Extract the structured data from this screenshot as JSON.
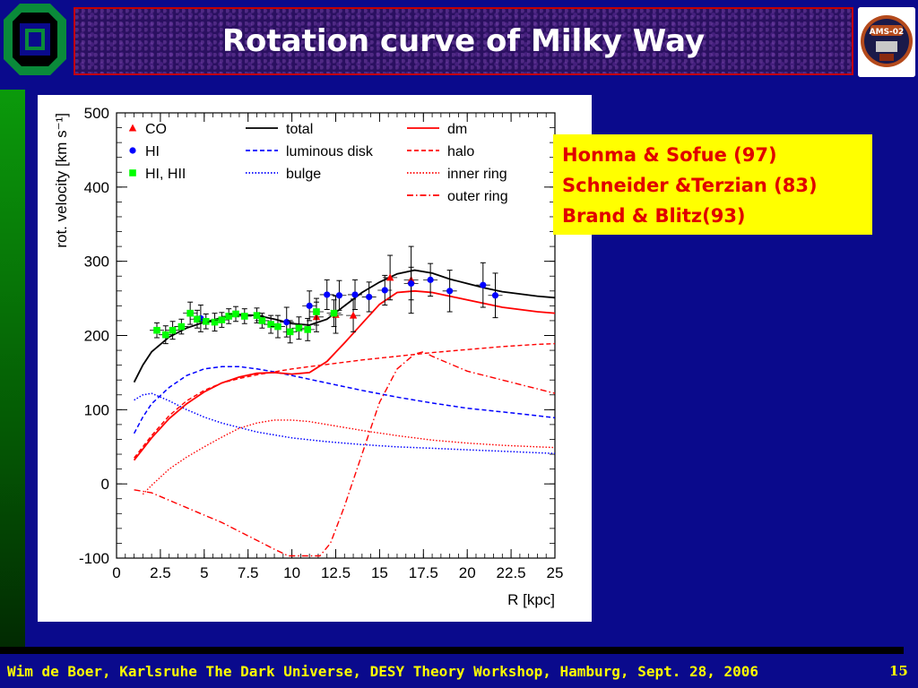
{
  "slide": {
    "title": "Rotation curve of Milky Way",
    "footer": "Wim de Boer, Karlsruhe The Dark Universe, DESY Theory Workshop, Hamburg, Sept. 28, 2006",
    "page_number": "15",
    "logo_text": "AMS-02"
  },
  "references": [
    "Honma & Sofue (97)",
    "Schneider &Terzian (83)",
    "Brand & Blitz(93)"
  ],
  "colors": {
    "background": "#0a0a8c",
    "refs_bg": "#ffff00",
    "refs_text": "#e00000",
    "footer_text": "#ffff00"
  },
  "chart_data": {
    "type": "line",
    "title": "",
    "xlabel": "R [kpc]",
    "ylabel": "rot. velocity [km s⁻¹]",
    "xlim": [
      0,
      25
    ],
    "ylim": [
      -100,
      500
    ],
    "xticks": [
      "0",
      "2.5",
      "5",
      "7.5",
      "10",
      "12.5",
      "15",
      "17.5",
      "20",
      "22.5",
      "25"
    ],
    "yticks": [
      "-100",
      "0",
      "100",
      "200",
      "300",
      "400",
      "500"
    ],
    "grid": false,
    "legend": [
      {
        "label": "CO",
        "kind": "marker",
        "color": "#ff0000",
        "marker": "triangle"
      },
      {
        "label": "HI",
        "kind": "marker",
        "color": "#0000ff",
        "marker": "circle"
      },
      {
        "label": "HI, HII",
        "kind": "marker",
        "color": "#00ff00",
        "marker": "square"
      },
      {
        "label": "total",
        "kind": "line",
        "color": "#000000",
        "dash": "solid"
      },
      {
        "label": "luminous disk",
        "kind": "line",
        "color": "#0000ff",
        "dash": "dashed"
      },
      {
        "label": "bulge",
        "kind": "line",
        "color": "#0000ff",
        "dash": "dotted"
      },
      {
        "label": "dm",
        "kind": "line",
        "color": "#ff0000",
        "dash": "solid"
      },
      {
        "label": "halo",
        "kind": "line",
        "color": "#ff0000",
        "dash": "dashed"
      },
      {
        "label": "inner ring",
        "kind": "line",
        "color": "#ff0000",
        "dash": "dotted"
      },
      {
        "label": "outer ring",
        "kind": "line",
        "color": "#ff0000",
        "dash": "dashdot"
      }
    ],
    "curves": [
      {
        "name": "total",
        "color": "#000000",
        "dash": "solid",
        "width": 1.8,
        "points": [
          [
            1,
            137
          ],
          [
            1.5,
            160
          ],
          [
            2,
            178
          ],
          [
            3,
            198
          ],
          [
            4,
            210
          ],
          [
            5,
            218
          ],
          [
            6,
            224
          ],
          [
            7,
            228
          ],
          [
            8,
            227
          ],
          [
            9,
            222
          ],
          [
            10,
            216
          ],
          [
            11,
            214
          ],
          [
            12,
            222
          ],
          [
            13,
            240
          ],
          [
            14,
            258
          ],
          [
            15,
            272
          ],
          [
            16,
            283
          ],
          [
            17,
            288
          ],
          [
            18,
            284
          ],
          [
            19,
            276
          ],
          [
            20,
            270
          ],
          [
            21,
            264
          ],
          [
            22,
            259
          ],
          [
            23,
            256
          ],
          [
            24,
            253
          ],
          [
            25,
            251
          ]
        ]
      },
      {
        "name": "luminous disk",
        "color": "#0000ff",
        "dash": "dashed",
        "width": 1.5,
        "points": [
          [
            1,
            68
          ],
          [
            1.5,
            90
          ],
          [
            2,
            108
          ],
          [
            3,
            130
          ],
          [
            4,
            146
          ],
          [
            5,
            155
          ],
          [
            6,
            158
          ],
          [
            7,
            158
          ],
          [
            8,
            155
          ],
          [
            9,
            151
          ],
          [
            10,
            146
          ],
          [
            12,
            136
          ],
          [
            14,
            126
          ],
          [
            16,
            117
          ],
          [
            18,
            109
          ],
          [
            20,
            102
          ],
          [
            22,
            97
          ],
          [
            24,
            92
          ],
          [
            25,
            89
          ]
        ]
      },
      {
        "name": "bulge",
        "color": "#0000ff",
        "dash": "dotted",
        "width": 1.5,
        "points": [
          [
            1,
            113
          ],
          [
            1.5,
            120
          ],
          [
            2,
            122
          ],
          [
            3,
            112
          ],
          [
            4,
            100
          ],
          [
            5,
            90
          ],
          [
            6,
            82
          ],
          [
            7,
            76
          ],
          [
            8,
            70
          ],
          [
            9,
            66
          ],
          [
            10,
            62
          ],
          [
            12,
            57
          ],
          [
            14,
            53
          ],
          [
            16,
            50
          ],
          [
            18,
            48
          ],
          [
            20,
            46
          ],
          [
            22,
            44
          ],
          [
            24,
            42
          ],
          [
            25,
            41
          ]
        ]
      },
      {
        "name": "dm",
        "color": "#ff0000",
        "dash": "solid",
        "width": 1.8,
        "points": [
          [
            1,
            32
          ],
          [
            2,
            62
          ],
          [
            3,
            88
          ],
          [
            4,
            108
          ],
          [
            5,
            124
          ],
          [
            6,
            136
          ],
          [
            7,
            144
          ],
          [
            8,
            149
          ],
          [
            9,
            150
          ],
          [
            10,
            148
          ],
          [
            11,
            150
          ],
          [
            12,
            165
          ],
          [
            13,
            190
          ],
          [
            14,
            216
          ],
          [
            15,
            242
          ],
          [
            16,
            258
          ],
          [
            17,
            260
          ],
          [
            18,
            258
          ],
          [
            19,
            253
          ],
          [
            20,
            248
          ],
          [
            21,
            243
          ],
          [
            22,
            238
          ],
          [
            23,
            235
          ],
          [
            24,
            232
          ],
          [
            25,
            230
          ]
        ]
      },
      {
        "name": "halo",
        "color": "#ff0000",
        "dash": "dashed",
        "width": 1.4,
        "points": [
          [
            1,
            35
          ],
          [
            2,
            65
          ],
          [
            3,
            92
          ],
          [
            4,
            112
          ],
          [
            5,
            126
          ],
          [
            6,
            136
          ],
          [
            7,
            142
          ],
          [
            8,
            147
          ],
          [
            9,
            151
          ],
          [
            10,
            155
          ],
          [
            12,
            161
          ],
          [
            14,
            167
          ],
          [
            16,
            172
          ],
          [
            18,
            177
          ],
          [
            20,
            181
          ],
          [
            22,
            185
          ],
          [
            24,
            188
          ],
          [
            25,
            189
          ]
        ]
      },
      {
        "name": "inner ring",
        "color": "#ff0000",
        "dash": "dotted",
        "width": 1.4,
        "points": [
          [
            1.5,
            -14
          ],
          [
            2,
            -2
          ],
          [
            3,
            20
          ],
          [
            4,
            36
          ],
          [
            5,
            50
          ],
          [
            6,
            63
          ],
          [
            7,
            75
          ],
          [
            8,
            82
          ],
          [
            9,
            86
          ],
          [
            10,
            86
          ],
          [
            11,
            84
          ],
          [
            12,
            80
          ],
          [
            14,
            72
          ],
          [
            16,
            65
          ],
          [
            18,
            59
          ],
          [
            20,
            55
          ],
          [
            22,
            52
          ],
          [
            24,
            50
          ],
          [
            25,
            49
          ]
        ]
      },
      {
        "name": "outer ring",
        "color": "#ff0000",
        "dash": "dashdot",
        "width": 1.4,
        "points": [
          [
            1,
            -8
          ],
          [
            2,
            -12
          ],
          [
            3,
            -22
          ],
          [
            4,
            -32
          ],
          [
            5,
            -42
          ],
          [
            6,
            -52
          ],
          [
            7,
            -64
          ],
          [
            8,
            -76
          ],
          [
            9,
            -88
          ],
          [
            9.8,
            -97
          ],
          [
            11.6,
            -97
          ],
          [
            12.2,
            -80
          ],
          [
            13,
            -30
          ],
          [
            14,
            40
          ],
          [
            15,
            110
          ],
          [
            16,
            155
          ],
          [
            17,
            175
          ],
          [
            17.5,
            178
          ],
          [
            18,
            172
          ],
          [
            19,
            162
          ],
          [
            20,
            152
          ],
          [
            22,
            140
          ],
          [
            24,
            128
          ],
          [
            25,
            122
          ]
        ]
      }
    ],
    "series": [
      {
        "name": "CO",
        "marker": "triangle",
        "color": "#ff0000",
        "points": [
          [
            11.4,
            225,
            20
          ],
          [
            12.5,
            228,
            25
          ],
          [
            13.5,
            227,
            22
          ],
          [
            15.6,
            278,
            30
          ],
          [
            16.8,
            275,
            45
          ]
        ]
      },
      {
        "name": "HI",
        "marker": "circle",
        "color": "#0000ff",
        "points": [
          [
            4.8,
            223,
            18
          ],
          [
            9.7,
            218,
            20
          ],
          [
            11.0,
            240,
            20
          ],
          [
            12.0,
            255,
            20
          ],
          [
            12.7,
            254,
            20
          ],
          [
            13.6,
            255,
            20
          ],
          [
            14.4,
            252,
            20
          ],
          [
            15.3,
            261,
            20
          ],
          [
            16.8,
            270,
            22
          ],
          [
            17.9,
            275,
            22
          ],
          [
            19.0,
            260,
            28
          ],
          [
            20.9,
            268,
            30
          ],
          [
            21.6,
            254,
            30
          ]
        ]
      },
      {
        "name": "HI, HII",
        "marker": "square",
        "color": "#00ff00",
        "points": [
          [
            2.3,
            207,
            10
          ],
          [
            2.8,
            201,
            12
          ],
          [
            3.2,
            207,
            12
          ],
          [
            3.7,
            212,
            10
          ],
          [
            4.2,
            230,
            15
          ],
          [
            4.6,
            222,
            12
          ],
          [
            5.1,
            219,
            10
          ],
          [
            5.6,
            218,
            12
          ],
          [
            6.0,
            221,
            10
          ],
          [
            6.4,
            226,
            10
          ],
          [
            6.8,
            229,
            10
          ],
          [
            7.3,
            226,
            10
          ],
          [
            8.0,
            227,
            10
          ],
          [
            8.3,
            220,
            10
          ],
          [
            8.8,
            215,
            12
          ],
          [
            9.2,
            212,
            15
          ],
          [
            9.9,
            205,
            15
          ],
          [
            10.4,
            210,
            15
          ],
          [
            10.9,
            208,
            15
          ],
          [
            11.4,
            232,
            18
          ],
          [
            12.4,
            230,
            18
          ]
        ]
      }
    ]
  }
}
